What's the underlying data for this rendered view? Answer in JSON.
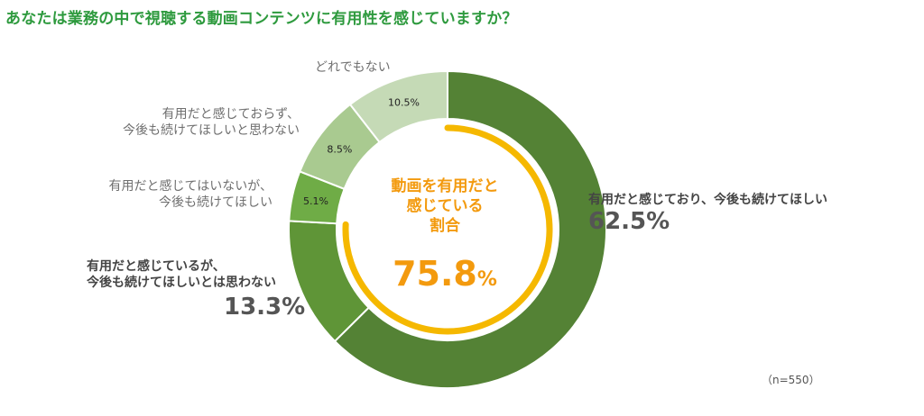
{
  "title": "あなたは業務の中で視聴する動画コンテンツに有用性を感じていますか？",
  "chart_data": {
    "type": "donut",
    "title": "あなたは業務の中で視聴する動画コンテンツに有用性を感じていますか？",
    "series": [
      {
        "name": "有用だと感じており、今後も続けてほしい",
        "value": 62.5,
        "label": "62.5%",
        "color": "#548235"
      },
      {
        "name": "有用だと感じているが、今後も続けてほしいとは思わない",
        "value": 13.3,
        "label": "13.3%",
        "color": "#5f9537"
      },
      {
        "name": "有用だと感じてはいないが、今後も続けてほしい",
        "value": 5.1,
        "label": "5.1%",
        "color": "#6fac46"
      },
      {
        "name": "有用だと感じておらず、今後も続けてほしいと思わない",
        "value": 8.5,
        "label": "8.5%",
        "color": "#a9ca90"
      },
      {
        "name": "どれでもない",
        "value": 10.5,
        "label": "10.5%",
        "color": "#c5dab6"
      }
    ],
    "highlight": {
      "text_line1": "動画を有用だと",
      "text_line2": "感じている",
      "text_line3": "割合",
      "value": 75.8,
      "value_text": "75.8",
      "unit": "%",
      "color": "#f5b800"
    },
    "note": "（n=550）"
  },
  "labels": {
    "s0_line1": "有用だと感じており、今後も続けてほしい",
    "s0_big": "62.5%",
    "s1_line1": "有用だと感じているが、",
    "s1_line2": "今後も続けてほしいとは思わない",
    "s1_big": "13.3%",
    "s2_line1": "有用だと感じてはいないが、",
    "s2_line2": "今後も続けてほしい",
    "s3_line1": "有用だと感じておらず、",
    "s3_line2": "今後も続けてほしいと思わない",
    "s4_line1": "どれでもない"
  }
}
